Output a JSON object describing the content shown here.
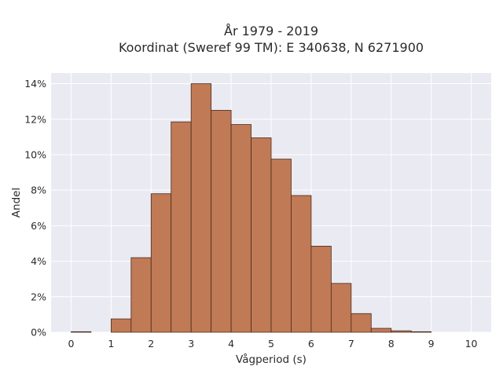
{
  "chart_data": {
    "type": "bar",
    "title": [
      "År 1979 - 2019",
      "Koordinat (Sweref 99 TM): E 340638, N 6271900"
    ],
    "xlabel": "Vågperiod (s)",
    "ylabel": "Andel",
    "bin_edges": [
      0,
      0.5,
      1,
      1.5,
      2,
      2.5,
      3,
      3.5,
      4,
      4.5,
      5,
      5.5,
      6,
      6.5,
      7,
      7.5,
      8,
      8.5,
      9,
      9.5,
      10
    ],
    "values": [
      0.03,
      0,
      0.75,
      4.2,
      7.8,
      11.85,
      14.0,
      12.5,
      11.7,
      10.95,
      9.75,
      7.7,
      4.85,
      2.75,
      1.05,
      0.22,
      0.08,
      0.03,
      0,
      0
    ],
    "value_unit": "%",
    "xlim": [
      -0.5,
      10.5
    ],
    "ylim": [
      0,
      14.6
    ],
    "xticks": [
      0,
      1,
      2,
      3,
      4,
      5,
      6,
      7,
      8,
      9,
      10
    ],
    "xtick_labels": [
      "0",
      "1",
      "2",
      "3",
      "4",
      "5",
      "6",
      "7",
      "8",
      "9",
      "10"
    ],
    "yticks": [
      0,
      2,
      4,
      6,
      8,
      10,
      12,
      14
    ],
    "ytick_labels": [
      "0%",
      "2%",
      "4%",
      "6%",
      "8%",
      "10%",
      "12%",
      "14%"
    ],
    "grid": true,
    "colors": {
      "bar_fill": "#c07a56",
      "bar_edge": "#4a2a1a",
      "plot_background": "#eaeaf2",
      "grid": "#ffffff"
    }
  }
}
